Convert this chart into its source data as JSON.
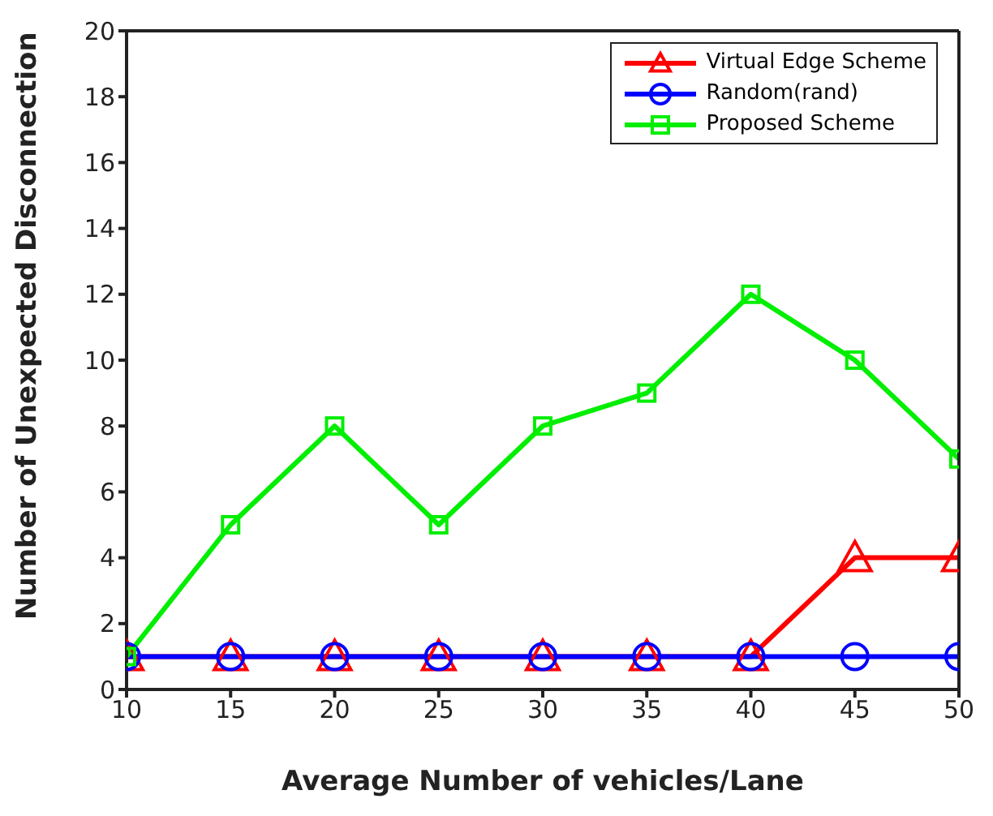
{
  "chart_data": {
    "type": "line",
    "xlabel": "Average Number of vehicles/Lane",
    "ylabel": "Number of Unexpected Disconnection",
    "x": [
      10,
      15,
      20,
      25,
      30,
      35,
      40,
      45,
      50
    ],
    "series": [
      {
        "name": "Virtual Edge Scheme",
        "color": "#ff0000",
        "marker": "triangle",
        "values": [
          1,
          1,
          1,
          1,
          1,
          1,
          1,
          4,
          4
        ]
      },
      {
        "name": "Random(rand)",
        "color": "#0000ff",
        "marker": "circle",
        "values": [
          1,
          1,
          1,
          1,
          1,
          1,
          1,
          1,
          1
        ]
      },
      {
        "name": "Proposed Scheme",
        "color": "#00ee00",
        "marker": "square",
        "values": [
          1,
          5,
          8,
          5,
          8,
          9,
          12,
          10,
          7
        ]
      }
    ],
    "xlim": [
      10,
      50
    ],
    "xticks": [
      10,
      15,
      20,
      25,
      30,
      35,
      40,
      45,
      50
    ],
    "ylim": [
      0,
      20
    ],
    "yticks": [
      0,
      2,
      4,
      6,
      8,
      10,
      12,
      14,
      16,
      18,
      20
    ],
    "grid": false,
    "legend": "top right",
    "line_style": "solid"
  }
}
